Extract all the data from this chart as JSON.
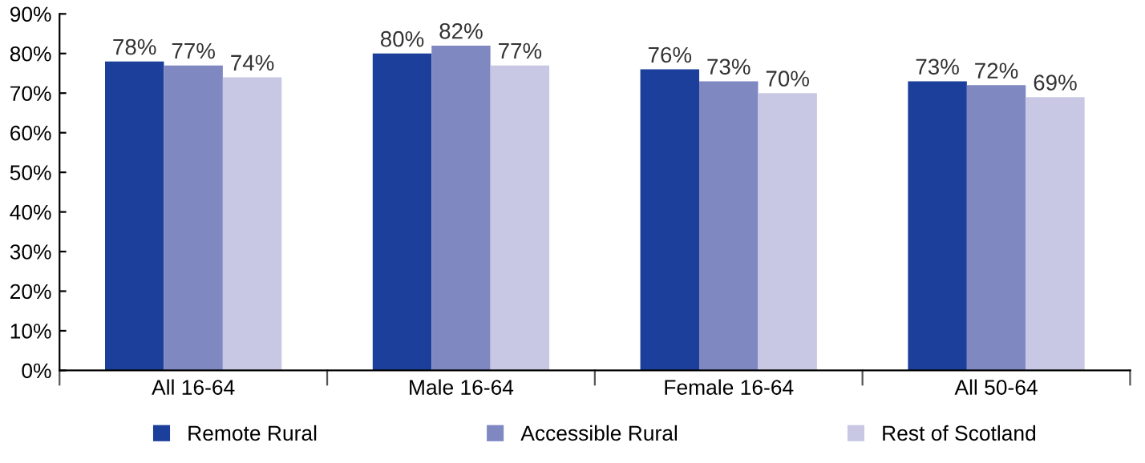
{
  "chart_data": {
    "type": "bar",
    "categories": [
      "All 16-64",
      "Male 16-64",
      "Female 16-64",
      "All 50-64"
    ],
    "series": [
      {
        "name": "Remote Rural",
        "color": "#1b3f9a",
        "values": [
          78,
          80,
          76,
          73
        ],
        "value_labels": [
          "78%",
          "80%",
          "76%",
          "73%"
        ]
      },
      {
        "name": "Accessible Rural",
        "color": "#8088c2",
        "values": [
          77,
          82,
          73,
          72
        ],
        "value_labels": [
          "77%",
          "82%",
          "73%",
          "72%"
        ]
      },
      {
        "name": "Rest of Scotland",
        "color": "#c8c8e4",
        "values": [
          74,
          77,
          70,
          69
        ],
        "value_labels": [
          "74%",
          "77%",
          "70%",
          "69%"
        ]
      }
    ],
    "ylim": [
      0,
      90
    ],
    "yticks": [
      {
        "value": 0,
        "label": "0%"
      },
      {
        "value": 10,
        "label": "10%"
      },
      {
        "value": 20,
        "label": "20%"
      },
      {
        "value": 30,
        "label": "30%"
      },
      {
        "value": 40,
        "label": "40%"
      },
      {
        "value": 50,
        "label": "50%"
      },
      {
        "value": 60,
        "label": "60%"
      },
      {
        "value": 70,
        "label": "70%"
      },
      {
        "value": 80,
        "label": "80%"
      },
      {
        "value": 90,
        "label": "90%"
      }
    ],
    "grid": false,
    "legend": "bottom"
  }
}
